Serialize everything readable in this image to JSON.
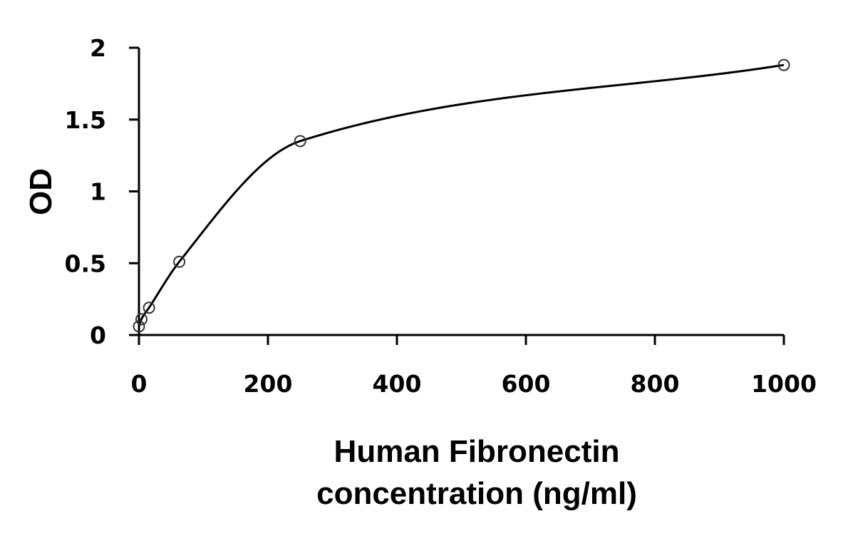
{
  "chart_data": {
    "type": "scatter",
    "title": "",
    "xlabel_lines": [
      "Human Fibronectin",
      "concentration (ng/ml)"
    ],
    "ylabel": "OD",
    "xlim": [
      0,
      1000
    ],
    "ylim": [
      0,
      2
    ],
    "x_ticks": [
      0,
      200,
      400,
      600,
      800,
      1000
    ],
    "x_tick_labels": [
      "0",
      "200",
      "400",
      "600",
      "800",
      "1000"
    ],
    "y_ticks": [
      0,
      0.5,
      1,
      1.5,
      2
    ],
    "y_tick_labels": [
      "0",
      "0.5",
      "1",
      "1.5",
      "2"
    ],
    "grid": false,
    "legend": "none",
    "series": [
      {
        "marker": "open-circle",
        "line": "smooth",
        "x": [
          0,
          3.9,
          15.6,
          62.5,
          250,
          1000
        ],
        "y": [
          0.06,
          0.11,
          0.19,
          0.51,
          1.35,
          1.88
        ]
      }
    ],
    "colors": {
      "axis": "#000000",
      "curve": "#000000",
      "marker": "#333333"
    }
  }
}
